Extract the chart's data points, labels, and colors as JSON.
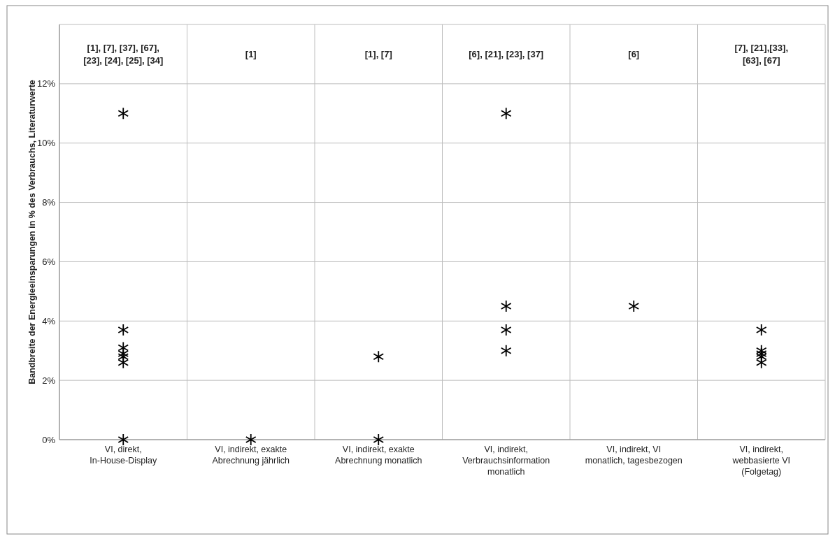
{
  "chart_data": {
    "type": "scatter",
    "ylabel": "Bandbreite der Energieeinsparungen in % des Verbrauchs, Literaturwerte",
    "categories": [
      "VI, direkt, In-House-Display",
      "VI, indirekt, exakte Abrechnung jährlich",
      "VI, indirekt, exakte Abrechnung monatlich",
      "VI, indirekt, Verbrauchsinformation monatlich",
      "VI, indirekt, VI monatlich, tagesbezogen",
      "VI, indirekt, webbasierte VI (Folgetag)"
    ],
    "series": [
      {
        "color": "#000000",
        "x": [
          "VI, direkt, In-House-Display",
          "VI, direkt, In-House-Display",
          "VI, direkt, In-House-Display",
          "VI, direkt, In-House-Display",
          "VI, direkt, In-House-Display",
          "VI, direkt, In-House-Display",
          "VI, direkt, In-House-Display",
          "VI, indirekt, exakte Abrechnung jährlich",
          "VI, indirekt, exakte Abrechnung monatlich",
          "VI, indirekt, exakte Abrechnung monatlich",
          "VI, indirekt, Verbrauchsinformation monatlich",
          "VI, indirekt, Verbrauchsinformation monatlich",
          "VI, indirekt, Verbrauchsinformation monatlich",
          "VI, indirekt, Verbrauchsinformation monatlich",
          "VI, indirekt, VI monatlich, tagesbezogen",
          "VI, indirekt, webbasierte VI (Folgetag)",
          "VI, indirekt, webbasierte VI (Folgetag)",
          "VI, indirekt, webbasierte VI (Folgetag)",
          "VI, indirekt, webbasierte VI (Folgetag)",
          "VI, indirekt, webbasierte VI (Folgetag)"
        ],
        "values": [
          11,
          3.7,
          3.1,
          2.9,
          2.8,
          2.6,
          0,
          0,
          2.8,
          0,
          11,
          4.5,
          3.7,
          3.0,
          4.5,
          3.7,
          3.0,
          2.9,
          2.8,
          2.6
        ]
      }
    ],
    "ylim": [
      0,
      14
    ],
    "yticks": [
      {
        "value": 0,
        "label": "0%"
      },
      {
        "value": 2,
        "label": "2%"
      },
      {
        "value": 4,
        "label": "4%"
      },
      {
        "value": 6,
        "label": "6%"
      },
      {
        "value": 8,
        "label": "8%"
      },
      {
        "value": 10,
        "label": "10%"
      },
      {
        "value": 12,
        "label": "12%"
      },
      {
        "value": 14,
        "label": null
      }
    ],
    "grid": true,
    "marker": "cross",
    "annotations": [
      "[1], [7], [37], [67],\n[23], [24], [25], [34]",
      "[1]",
      "[1], [7]",
      "[6], [21], [23], [37]",
      "[6]",
      "[7], [21],[33],\n[63], [67]"
    ]
  }
}
